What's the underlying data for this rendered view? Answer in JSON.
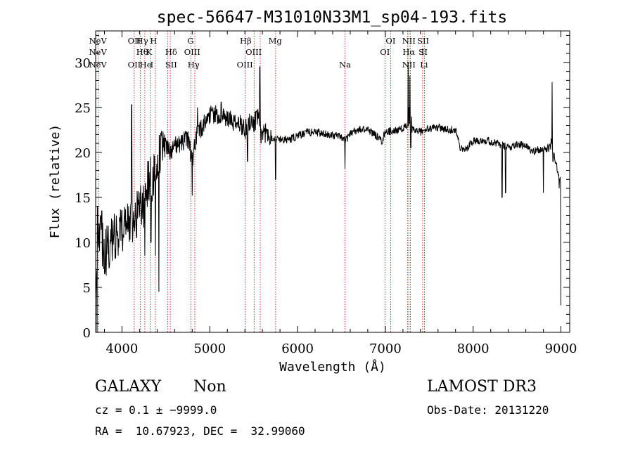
{
  "chart_data": {
    "type": "line",
    "title": "spec-56647-M31010N33M1_sp04-193.fits",
    "xlabel": "Wavelength (Å)",
    "ylabel": "Flux (relative)",
    "xlim": [
      3700,
      9100
    ],
    "ylim": [
      0,
      33.5
    ],
    "xticks": [
      4000,
      5000,
      6000,
      7000,
      8000,
      9000
    ],
    "yticks": [
      0,
      5,
      10,
      15,
      20,
      25,
      30
    ],
    "spectrum_keypoints": [
      [
        3700,
        2
      ],
      [
        3715,
        9
      ],
      [
        3740,
        11
      ],
      [
        3800,
        9
      ],
      [
        3850,
        9.5
      ],
      [
        3900,
        10.5
      ],
      [
        3950,
        11
      ],
      [
        4000,
        11.5
      ],
      [
        4050,
        12
      ],
      [
        4100,
        12.5
      ],
      [
        4150,
        12.3
      ],
      [
        4200,
        14.5
      ],
      [
        4250,
        14
      ],
      [
        4300,
        17
      ],
      [
        4350,
        17
      ],
      [
        4400,
        19
      ],
      [
        4450,
        20
      ],
      [
        4500,
        21
      ],
      [
        4550,
        20
      ],
      [
        4600,
        21
      ],
      [
        4650,
        20.8
      ],
      [
        4700,
        21.3
      ],
      [
        4750,
        21.5
      ],
      [
        4800,
        19
      ],
      [
        4850,
        22
      ],
      [
        4900,
        22.5
      ],
      [
        4950,
        23.5
      ],
      [
        5000,
        24.3
      ],
      [
        5050,
        24.2
      ],
      [
        5100,
        24.1
      ],
      [
        5150,
        24
      ],
      [
        5200,
        23.7
      ],
      [
        5250,
        23.5
      ],
      [
        5300,
        23
      ],
      [
        5350,
        23.2
      ],
      [
        5400,
        22.5
      ],
      [
        5450,
        23.5
      ],
      [
        5500,
        23.3
      ],
      [
        5550,
        23.8
      ],
      [
        5600,
        22
      ],
      [
        5650,
        22.2
      ],
      [
        5700,
        21.7
      ],
      [
        5750,
        21.5
      ],
      [
        5800,
        21.5
      ],
      [
        5900,
        21.4
      ],
      [
        6000,
        21.8
      ],
      [
        6100,
        22.2
      ],
      [
        6200,
        22.3
      ],
      [
        6300,
        22
      ],
      [
        6400,
        22
      ],
      [
        6500,
        21.6
      ],
      [
        6550,
        21.3
      ],
      [
        6600,
        22.2
      ],
      [
        6700,
        22.5
      ],
      [
        6800,
        22.6
      ],
      [
        6900,
        21.8
      ],
      [
        6960,
        21.2
      ],
      [
        7000,
        22.3
      ],
      [
        7100,
        22.4
      ],
      [
        7200,
        22.6
      ],
      [
        7250,
        23.1
      ],
      [
        7300,
        22.5
      ],
      [
        7400,
        22.3
      ],
      [
        7500,
        22.6
      ],
      [
        7600,
        22.8
      ],
      [
        7700,
        22.5
      ],
      [
        7800,
        22.6
      ],
      [
        7850,
        20.5
      ],
      [
        7900,
        20.2
      ],
      [
        8000,
        21.3
      ],
      [
        8100,
        21.4
      ],
      [
        8200,
        21.2
      ],
      [
        8300,
        20.9
      ],
      [
        8400,
        20.5
      ],
      [
        8500,
        21
      ],
      [
        8600,
        20.6
      ],
      [
        8700,
        20.2
      ],
      [
        8800,
        20.3
      ],
      [
        8900,
        20.6
      ],
      [
        9000,
        16.5
      ]
    ],
    "spectrum_spikes": [
      [
        3717,
        0
      ],
      [
        3722,
        14
      ],
      [
        3770,
        13.5
      ],
      [
        3820,
        6.3
      ],
      [
        4110,
        25.3
      ],
      [
        4120,
        10
      ],
      [
        4260,
        8.5
      ],
      [
        4330,
        10
      ],
      [
        4380,
        8.5
      ],
      [
        4420,
        4.5
      ],
      [
        4800,
        15.2
      ],
      [
        4860,
        25
      ],
      [
        5130,
        25.6
      ],
      [
        5430,
        19
      ],
      [
        5570,
        29.5
      ],
      [
        5585,
        21
      ],
      [
        5750,
        17
      ],
      [
        6540,
        18.2
      ],
      [
        7260,
        30
      ],
      [
        7270,
        25
      ],
      [
        7280,
        28.5
      ],
      [
        7290,
        20.5
      ],
      [
        7300,
        24
      ],
      [
        8330,
        15
      ],
      [
        8370,
        15.5
      ],
      [
        8800,
        15.5
      ],
      [
        8890,
        21.5
      ],
      [
        8900,
        27.8
      ],
      [
        8910,
        19
      ],
      [
        8950,
        18.8
      ],
      [
        8980,
        16
      ],
      [
        9000,
        3
      ]
    ],
    "emission_lines": [
      {
        "label": "NeV",
        "wavelength": 3726,
        "row": "top"
      },
      {
        "label": "OII",
        "wavelength": 4140,
        "row": "top"
      },
      {
        "label": "Hγ",
        "wavelength": 4230,
        "row": "top"
      },
      {
        "label": "H",
        "wavelength": 4360,
        "row": "top"
      },
      {
        "label": "G",
        "wavelength": 4780,
        "row": "top"
      },
      {
        "label": "Hβ",
        "wavelength": 5410,
        "row": "top"
      },
      {
        "label": "Mg",
        "wavelength": 5745,
        "row": "top"
      },
      {
        "label": "OI",
        "wavelength": 7060,
        "row": "top"
      },
      {
        "label": "NII",
        "wavelength": 7268,
        "row": "top"
      },
      {
        "label": "SII",
        "wavelength": 7430,
        "row": "top"
      }
    ],
    "absorption_lines": [
      {
        "label": "NeV",
        "wavelength": 3726,
        "row": "mid"
      },
      {
        "label": "Hθ",
        "wavelength": 4230,
        "row": "mid"
      },
      {
        "label": "K",
        "wavelength": 4310,
        "row": "mid"
      },
      {
        "label": "Hδ",
        "wavelength": 4560,
        "row": "mid"
      },
      {
        "label": "OIII",
        "wavelength": 4800,
        "row": "mid"
      },
      {
        "label": "OIII",
        "wavelength": 5500,
        "row": "mid"
      },
      {
        "label": "OI",
        "wavelength": 6995,
        "row": "mid"
      },
      {
        "label": "Hα",
        "wavelength": 7268,
        "row": "mid"
      },
      {
        "label": "S",
        "wavelength": 7410,
        "row": "mid"
      },
      {
        "label": "II",
        "wavelength": 7445,
        "row": "mid"
      },
      {
        "label": "NeV",
        "wavelength": 3726,
        "row": "bot"
      },
      {
        "label": "OII",
        "wavelength": 4140,
        "row": "bot"
      },
      {
        "label": "He",
        "wavelength": 4270,
        "row": "bot"
      },
      {
        "label": "I",
        "wavelength": 4340,
        "row": "bot"
      },
      {
        "label": "SII",
        "wavelength": 4560,
        "row": "bot"
      },
      {
        "label": "Hγ",
        "wavelength": 4815,
        "row": "bot"
      },
      {
        "label": "OIII",
        "wavelength": 5400,
        "row": "bot"
      },
      {
        "label": "Na",
        "wavelength": 6540,
        "row": "bot"
      },
      {
        "label": "NII",
        "wavelength": 7268,
        "row": "bot"
      },
      {
        "label": "Li",
        "wavelength": 7440,
        "row": "bot"
      }
    ],
    "line_marker_wavelengths": [
      3730,
      4140,
      4210,
      4260,
      4320,
      4380,
      4520,
      4550,
      4785,
      4830,
      5405,
      5505,
      5575,
      5750,
      6540,
      6995,
      7060,
      7255,
      7268,
      7285,
      7425,
      7445
    ]
  },
  "info": {
    "class": "GALAXY",
    "subclass": "Non",
    "survey": "LAMOST DR3",
    "cz": "cz = 0.1 ± −9999.0",
    "obs_date": "Obs-Date: 20131220",
    "coords": "RA =  10.67923, DEC =  32.99060"
  }
}
